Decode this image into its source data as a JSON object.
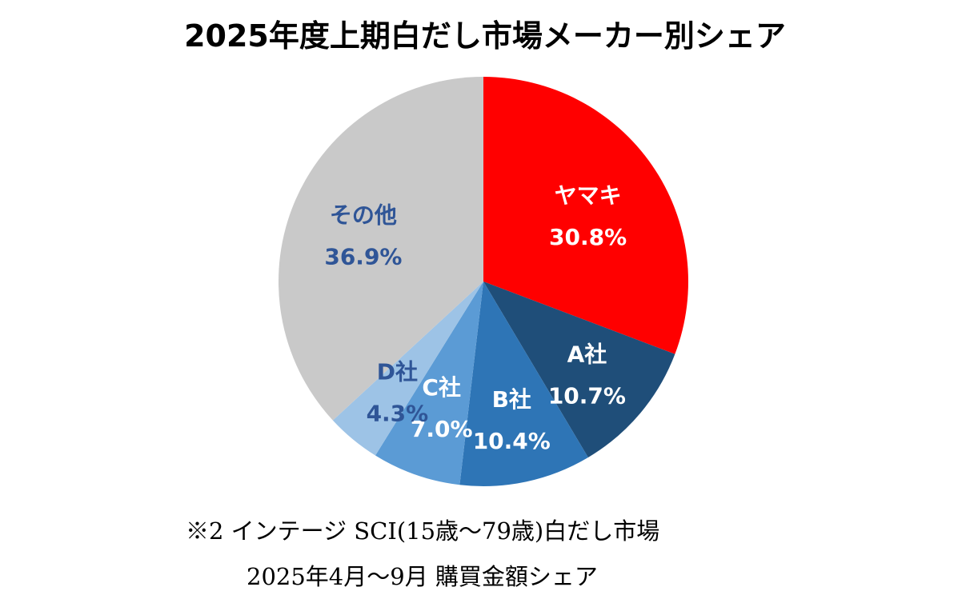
{
  "chart_data": {
    "type": "pie",
    "title": "2025年度上期白だし市場メーカー別シェア",
    "start_angle_deg": 0,
    "direction": "clockwise",
    "slices": [
      {
        "label": "ヤマキ",
        "value": 30.8,
        "value_label": "30.8%",
        "color": "#ff0000",
        "text_color": "#ffffff"
      },
      {
        "label": "A社",
        "value": 10.7,
        "value_label": "10.7%",
        "color": "#1f4e79",
        "text_color": "#ffffff"
      },
      {
        "label": "B社",
        "value": 10.4,
        "value_label": "10.4%",
        "color": "#2e75b6",
        "text_color": "#ffffff"
      },
      {
        "label": "C社",
        "value": 7.0,
        "value_label": "7.0%",
        "color": "#5b9bd5",
        "text_color": "#ffffff"
      },
      {
        "label": "D社",
        "value": 4.3,
        "value_label": "4.3%",
        "color": "#9dc3e6",
        "text_color": "#2f5597"
      },
      {
        "label": "その他",
        "value": 36.9,
        "value_label": "36.9%",
        "color": "#c9c9c9",
        "text_color": "#2f5597"
      }
    ],
    "legend": "none"
  },
  "notes": {
    "line1": "※2 インテージ SCI(15歳～79歳)白だし市場",
    "line2": "2025年4月～9月 購買金額シェア"
  }
}
